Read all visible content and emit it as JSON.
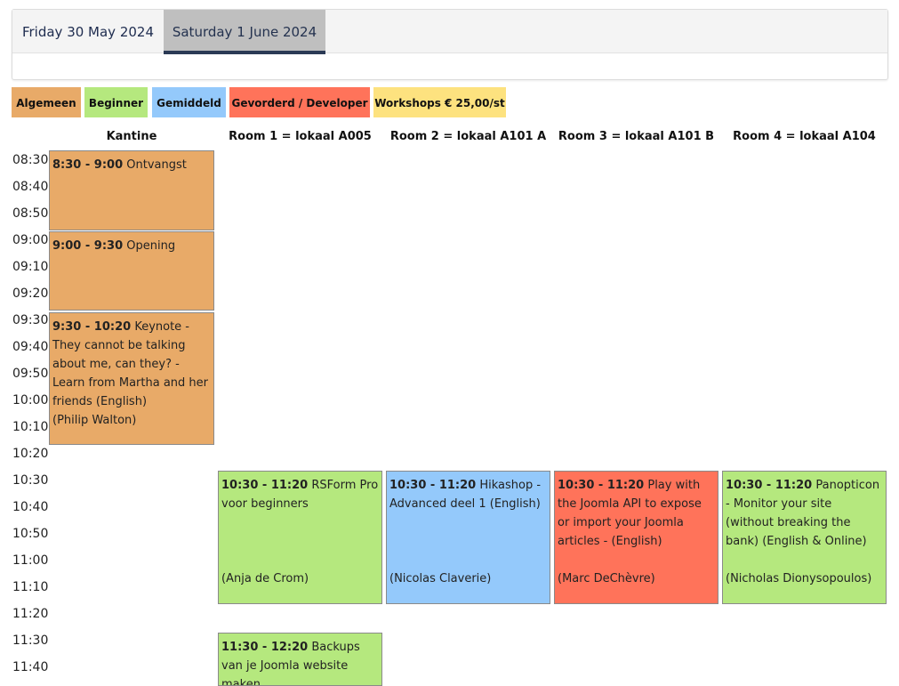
{
  "tabs": [
    {
      "label": "Friday 30 May 2024"
    },
    {
      "label": "Saturday 1 June 2024"
    }
  ],
  "legend": [
    {
      "label": "Algemeen",
      "color": "#e8aa68"
    },
    {
      "label": "Beginner",
      "color": "#b5e87e"
    },
    {
      "label": "Gemiddeld",
      "color": "#94c9fb"
    },
    {
      "label": "Gevorderd / Developer",
      "color": "#ff735a"
    },
    {
      "label": "Workshops € 25,00/st",
      "color": "#fde27f"
    }
  ],
  "rooms": [
    "Kantine",
    "Room 1 = lokaal A005",
    "Room 2 = lokaal A101 A",
    "Room 3 = lokaal A101 B",
    "Room 4 = lokaal A104"
  ],
  "times": [
    "08:30",
    "08:40",
    "08:50",
    "09:00",
    "09:10",
    "09:20",
    "09:30",
    "09:40",
    "09:50",
    "10:00",
    "10:10",
    "10:20",
    "10:30",
    "10:40",
    "10:50",
    "11:00",
    "11:10",
    "11:20",
    "11:30",
    "11:40"
  ],
  "sessions": {
    "s1": {
      "time": "8:30 - 9:00",
      "title": "Ontvangst",
      "speaker": ""
    },
    "s2": {
      "time": "9:00 - 9:30",
      "title": "Opening",
      "speaker": ""
    },
    "s3": {
      "time": "9:30 - 10:20",
      "title": "Keynote - They cannot be talking about me, can they? - Learn from Martha and her friends (English)",
      "speaker": "(Philip Walton)"
    },
    "s4": {
      "time": "10:30 - 11:20",
      "title": "RSForm Pro voor beginners",
      "speaker": "(Anja de Crom)"
    },
    "s5": {
      "time": "10:30 - 11:20",
      "title": "Hikashop - Advanced deel 1 (English)",
      "speaker": "(Nicolas Claverie)"
    },
    "s6": {
      "time": "10:30 - 11:20",
      "title": "Play with the Joomla API to expose or import your Joomla articles - (English)",
      "speaker": "(Marc DeChèvre)"
    },
    "s7": {
      "time": "10:30 - 11:20",
      "title": "Panopticon - Monitor your site (without breaking the bank) (English & Online)",
      "speaker": "(Nicholas Dionysopoulos)"
    },
    "s8": {
      "time": "11:30 - 12:20",
      "title": "Backups van je Joomla website maken",
      "speaker": ""
    }
  }
}
